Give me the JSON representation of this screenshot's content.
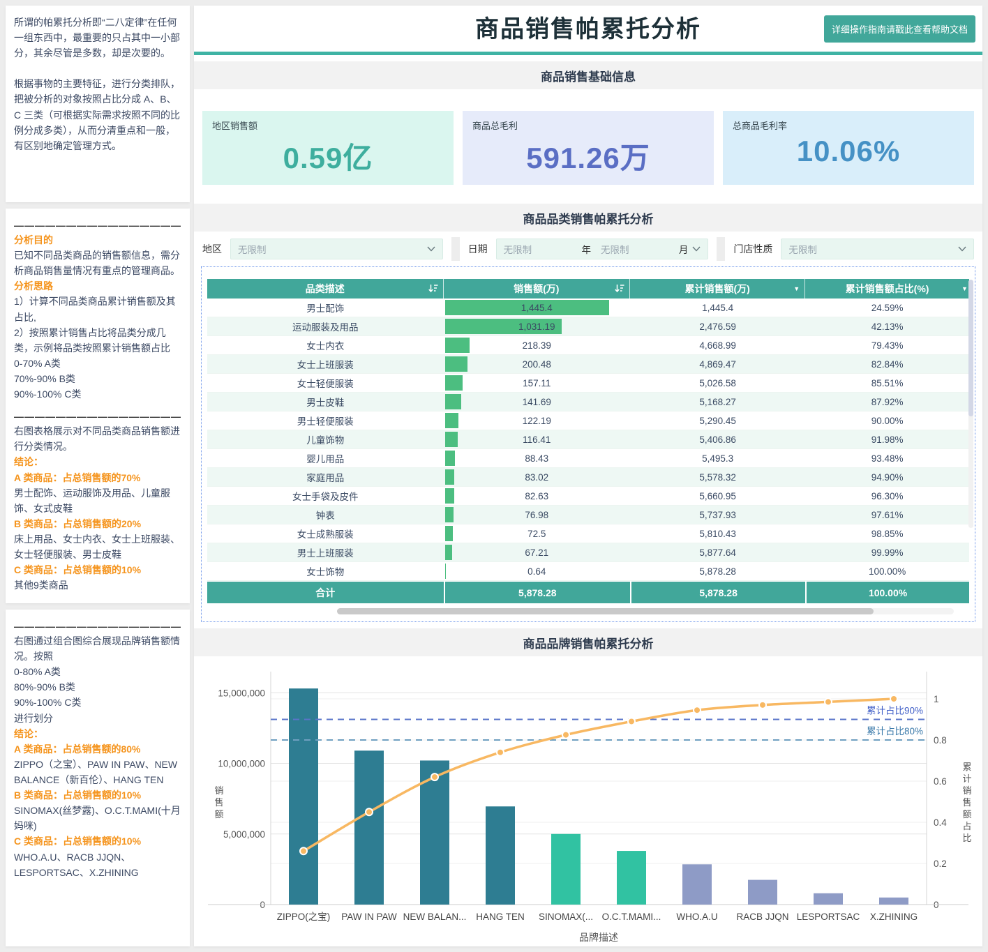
{
  "theme": {
    "accent": "#41a79a",
    "divider": "#3fb3a4",
    "bar_green": "#4cbe80",
    "dotted_border": "#6d95ea"
  },
  "icons": {
    "chevron_down": "chevron-down",
    "sort_descending": "sort-descending",
    "filter_triangle": "▼"
  },
  "sidebar": {
    "divider": "———————————————————",
    "card1": {
      "p1": "所谓的帕累托分析即“二八定律”在任何一组东西中，最重要的只占其中一小部分，其余尽管是多数，却是次要的。",
      "p2": "根据事物的主要特征，进行分类排队，把被分析的对象按照占比分成 A、B、C 三类（可根据实际需求按照不同的比例分成多类），从而分清重点和一般，有区别地确定管理方式。"
    },
    "card2": {
      "goal_title": "分析目的",
      "goal_text": "已知不同品类商品的销售额信息，需分析商品销售量情况有重点的管理商品。",
      "idea_title": "分析思路",
      "idea_line1": "1）计算不同品类商品累计销售额及其占比,",
      "idea_line2": "2）按照累计销售占比将品类分成几类，示例将品类按照累计销售额占比",
      "class_a": "0-70% A类",
      "class_b": "70%-90% B类",
      "class_c": "90%-100% C类",
      "result_intro": "右图表格展示对不同品类商品销售额进行分类情况。",
      "conclusion_title": "结论：",
      "a_title": "A 类商品：占总销售额的70%",
      "a_items": "男士配饰、运动服饰及用品、儿童服饰、女式皮鞋",
      "b_title": "B 类商品：占总销售额的20%",
      "b_items": "床上用品、女士内衣、女士上班服装、女士轻便服装、男士皮鞋",
      "c_title": "C 类商品：占总销售额的10%",
      "c_items": "其他9类商品"
    },
    "card3": {
      "intro": "右图通过组合图综合展现品牌销售额情况。按照",
      "class_a": "0-80% A类",
      "class_b": "80%-90% B类",
      "class_c": "90%-100% C类",
      "split_text": "进行划分",
      "conclusion_title": "结论：",
      "a_title": "A 类商品：占总销售额的80%",
      "a_items": "ZIPPO（之宝）、PAW IN PAW、NEW BALANCE（新百伦）、HANG TEN",
      "b_title": "B 类商品：占总销售额的10%",
      "b_items": "SINOMAX(丝梦露)、O.C.T.MAMI(十月妈咪)",
      "c_title": "C 类商品：占总销售额的10%",
      "c_items": "WHO.A.U、RACB JJQN、LESPORTSAC、X.ZHINING"
    }
  },
  "header": {
    "title": "商品销售帕累托分析",
    "help_button": "详细操作指南请戳此查看帮助文档"
  },
  "sections": {
    "basic_info": "商品销售基础信息",
    "category": "商品品类销售帕累托分析",
    "brand": "商品品牌销售帕累托分析"
  },
  "kpis": [
    {
      "label": "地区销售额",
      "value": "0.59亿",
      "color": "#3eae9e",
      "bg": "#daf6ef"
    },
    {
      "label": "商品总毛利",
      "value": "591.26万",
      "color": "#5a6ec4",
      "bg": "#e6ebfa"
    },
    {
      "label": "总商品毛利率",
      "value": "10.06%",
      "color": "#4591c5",
      "bg": "#d9eefa"
    }
  ],
  "filters": {
    "region": {
      "label": "地区",
      "placeholder": "无限制"
    },
    "date": {
      "label": "日期",
      "year_placeholder": "无限制",
      "year_unit": "年",
      "month_placeholder": "无限制",
      "month_unit": "月"
    },
    "store_type": {
      "label": "门店性质",
      "placeholder": "无限制"
    }
  },
  "table": {
    "columns": [
      "品类描述",
      "销售额(万)",
      "累计销售额(万)",
      "累计销售额占比(%)"
    ],
    "max_sales_num": 1445.4,
    "rows": [
      {
        "name": "男士配饰",
        "sales": "1,445.4",
        "sales_num": 1445.4,
        "cum": "1,445.4",
        "pct": "24.59%"
      },
      {
        "name": "运动服装及用品",
        "sales": "1,031.19",
        "sales_num": 1031.19,
        "cum": "2,476.59",
        "pct": "42.13%"
      },
      {
        "name": "女士内衣",
        "sales": "218.39",
        "sales_num": 218.39,
        "cum": "4,668.99",
        "pct": "79.43%"
      },
      {
        "name": "女士上班服装",
        "sales": "200.48",
        "sales_num": 200.48,
        "cum": "4,869.47",
        "pct": "82.84%"
      },
      {
        "name": "女士轻便服装",
        "sales": "157.11",
        "sales_num": 157.11,
        "cum": "5,026.58",
        "pct": "85.51%"
      },
      {
        "name": "男士皮鞋",
        "sales": "141.69",
        "sales_num": 141.69,
        "cum": "5,168.27",
        "pct": "87.92%"
      },
      {
        "name": "男士轻便服装",
        "sales": "122.19",
        "sales_num": 122.19,
        "cum": "5,290.45",
        "pct": "90.00%"
      },
      {
        "name": "儿童饰物",
        "sales": "116.41",
        "sales_num": 116.41,
        "cum": "5,406.86",
        "pct": "91.98%"
      },
      {
        "name": "婴儿用品",
        "sales": "88.43",
        "sales_num": 88.43,
        "cum": "5,495.3",
        "pct": "93.48%"
      },
      {
        "name": "家庭用品",
        "sales": "83.02",
        "sales_num": 83.02,
        "cum": "5,578.32",
        "pct": "94.90%"
      },
      {
        "name": "女士手袋及皮件",
        "sales": "82.63",
        "sales_num": 82.63,
        "cum": "5,660.95",
        "pct": "96.30%"
      },
      {
        "name": "钟表",
        "sales": "76.98",
        "sales_num": 76.98,
        "cum": "5,737.93",
        "pct": "97.61%"
      },
      {
        "name": "女士成熟服装",
        "sales": "72.5",
        "sales_num": 72.5,
        "cum": "5,810.43",
        "pct": "98.85%"
      },
      {
        "name": "男士上班服装",
        "sales": "67.21",
        "sales_num": 67.21,
        "cum": "5,877.64",
        "pct": "99.99%"
      },
      {
        "name": "女士饰物",
        "sales": "0.64",
        "sales_num": 0.64,
        "cum": "5,878.28",
        "pct": "100.00%"
      }
    ],
    "total": {
      "label": "合计",
      "sales": "5,878.28",
      "cum": "5,878.28",
      "pct": "100.00%"
    }
  },
  "chart_data": {
    "type": "pareto-bar-line",
    "title": "商品品牌销售帕累托分析",
    "categories": [
      "ZIPPO(之宝)",
      "PAW IN PAW",
      "NEW BALAN...",
      "HANG TEN",
      "SINOMAX(...",
      "O.C.T.MAMI...",
      "WHO.A.U",
      "RACB JJQN",
      "LESPORTSAC",
      "X.ZHINING"
    ],
    "series": [
      {
        "name": "销售额",
        "type": "bar",
        "values": [
          15300000,
          10900000,
          10200000,
          6950000,
          5000000,
          3800000,
          2850000,
          1750000,
          800000,
          500000
        ]
      },
      {
        "name": "累计销售额占比",
        "type": "line",
        "values": [
          0.26,
          0.45,
          0.62,
          0.74,
          0.825,
          0.89,
          0.945,
          0.97,
          0.985,
          1.0
        ]
      }
    ],
    "bar_classes": [
      "A",
      "A",
      "A",
      "A",
      "B",
      "B",
      "C",
      "C",
      "C",
      "C"
    ],
    "class_colors": {
      "A": "#2e7d92",
      "B": "#31c2a2",
      "C": "#8e9bc6"
    },
    "line_color": "#f8b862",
    "left_axis": {
      "label": "销售额",
      "tick_labels": [
        "0",
        "5,000,000",
        "10,000,000",
        "15,000,000"
      ],
      "tick_values": [
        0,
        5000000,
        10000000,
        15000000
      ],
      "max": 16000000
    },
    "right_axis": {
      "label": "累计销售额占比",
      "tick_labels": [
        "0",
        "0.2",
        "0.4",
        "0.6",
        "0.8",
        "1"
      ],
      "tick_values": [
        0,
        0.2,
        0.4,
        0.6,
        0.8,
        1
      ]
    },
    "reference_lines": [
      {
        "value": 0.9,
        "label": "累计占比90%",
        "line_color": "#5a74c9",
        "label_color": "#3f5ec7"
      },
      {
        "value": 0.8,
        "label": "累计占比80%",
        "line_color": "#6f9fc0",
        "label_color": "#3878a9"
      }
    ],
    "xlabel": "品牌描述",
    "grid": true,
    "legend": "none"
  }
}
